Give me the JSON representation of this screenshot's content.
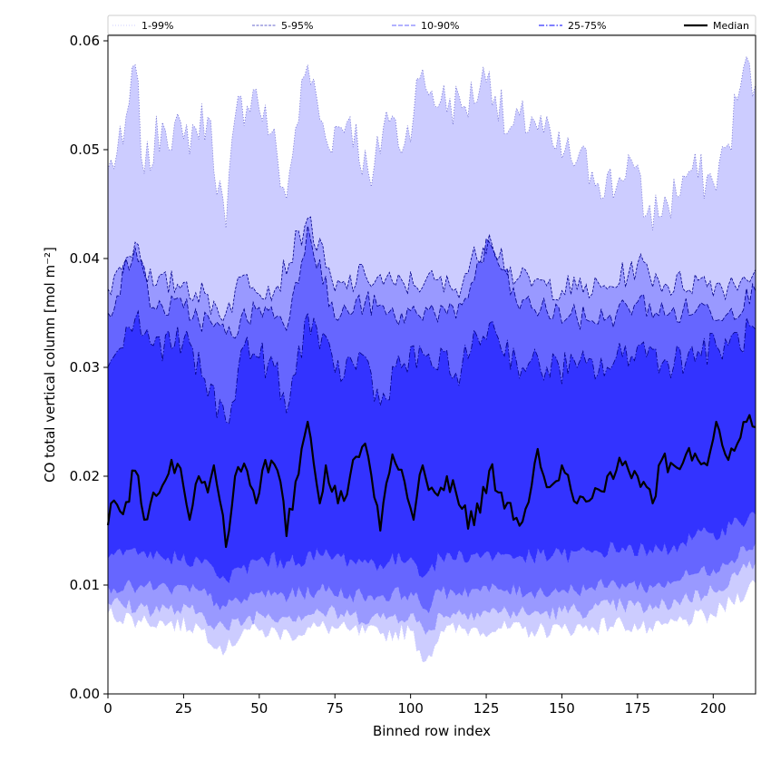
{
  "chart_data": {
    "type": "area",
    "xlabel": "Binned row index",
    "ylabel": "CO total vertical column [mol m⁻²]",
    "xlim": [
      0,
      214
    ],
    "ylim": [
      0,
      0.0605
    ],
    "xticks": [
      0,
      25,
      50,
      75,
      100,
      125,
      150,
      175,
      200
    ],
    "yticks": [
      0.0,
      0.01,
      0.02,
      0.03,
      0.04,
      0.05,
      0.06
    ],
    "ytick_labels": [
      "0.00",
      "0.01",
      "0.02",
      "0.03",
      "0.04",
      "0.05",
      "0.06"
    ],
    "legend_placement": "top, spanning full width",
    "grid": false,
    "n_points": 215,
    "x_step": 1,
    "bands": [
      {
        "name": "1-99%",
        "color": "#ccccff",
        "line_style": "dotted",
        "upper_knots": [
          [
            0,
            0.0482
          ],
          [
            5,
            0.0505
          ],
          [
            9,
            0.0578
          ],
          [
            12,
            0.0478
          ],
          [
            18,
            0.0525
          ],
          [
            25,
            0.051
          ],
          [
            33,
            0.053
          ],
          [
            39,
            0.0428
          ],
          [
            42,
            0.053
          ],
          [
            48,
            0.0555
          ],
          [
            54,
            0.0515
          ],
          [
            59,
            0.0455
          ],
          [
            62,
            0.052
          ],
          [
            66,
            0.0578
          ],
          [
            72,
            0.051
          ],
          [
            80,
            0.053
          ],
          [
            87,
            0.0466
          ],
          [
            92,
            0.0535
          ],
          [
            98,
            0.0505
          ],
          [
            103,
            0.0565
          ],
          [
            110,
            0.0545
          ],
          [
            118,
            0.054
          ],
          [
            126,
            0.0572
          ],
          [
            132,
            0.0515
          ],
          [
            140,
            0.053
          ],
          [
            148,
            0.05
          ],
          [
            155,
            0.049
          ],
          [
            160,
            0.048
          ],
          [
            168,
            0.0465
          ],
          [
            172,
            0.0495
          ],
          [
            178,
            0.044
          ],
          [
            185,
            0.045
          ],
          [
            192,
            0.048
          ],
          [
            200,
            0.047
          ],
          [
            205,
            0.0505
          ],
          [
            210,
            0.0575
          ],
          [
            214,
            0.056
          ]
        ],
        "lower_knots": [
          [
            0,
            0.0074
          ],
          [
            10,
            0.0068
          ],
          [
            20,
            0.0065
          ],
          [
            30,
            0.0062
          ],
          [
            39,
            0.004
          ],
          [
            45,
            0.006
          ],
          [
            50,
            0.0058
          ],
          [
            60,
            0.0055
          ],
          [
            70,
            0.0062
          ],
          [
            80,
            0.0058
          ],
          [
            90,
            0.0055
          ],
          [
            100,
            0.0058
          ],
          [
            105,
            0.003
          ],
          [
            110,
            0.0058
          ],
          [
            120,
            0.006
          ],
          [
            130,
            0.006
          ],
          [
            140,
            0.0058
          ],
          [
            150,
            0.006
          ],
          [
            160,
            0.0062
          ],
          [
            170,
            0.0065
          ],
          [
            180,
            0.0058
          ],
          [
            190,
            0.0068
          ],
          [
            200,
            0.0072
          ],
          [
            214,
            0.0102
          ]
        ]
      },
      {
        "name": "5-95%",
        "color": "#9999ff",
        "line_style": "dashed-fine",
        "upper_knots": [
          [
            0,
            0.0372
          ],
          [
            9,
            0.0415
          ],
          [
            15,
            0.0375
          ],
          [
            25,
            0.0378
          ],
          [
            39,
            0.035
          ],
          [
            45,
            0.0385
          ],
          [
            55,
            0.037
          ],
          [
            66,
            0.0437
          ],
          [
            75,
            0.037
          ],
          [
            85,
            0.0385
          ],
          [
            95,
            0.0375
          ],
          [
            105,
            0.038
          ],
          [
            115,
            0.0372
          ],
          [
            126,
            0.0422
          ],
          [
            135,
            0.038
          ],
          [
            145,
            0.0375
          ],
          [
            155,
            0.0372
          ],
          [
            165,
            0.0372
          ],
          [
            175,
            0.0395
          ],
          [
            185,
            0.0375
          ],
          [
            195,
            0.038
          ],
          [
            205,
            0.0375
          ],
          [
            214,
            0.039
          ]
        ],
        "lower_knots": [
          [
            0,
            0.0084
          ],
          [
            10,
            0.008
          ],
          [
            20,
            0.0078
          ],
          [
            30,
            0.0075
          ],
          [
            39,
            0.006
          ],
          [
            50,
            0.0074
          ],
          [
            60,
            0.0072
          ],
          [
            70,
            0.0076
          ],
          [
            80,
            0.0072
          ],
          [
            90,
            0.007
          ],
          [
            100,
            0.0074
          ],
          [
            105,
            0.0055
          ],
          [
            110,
            0.0074
          ],
          [
            120,
            0.0076
          ],
          [
            130,
            0.0076
          ],
          [
            140,
            0.0074
          ],
          [
            150,
            0.0076
          ],
          [
            160,
            0.0078
          ],
          [
            170,
            0.0082
          ],
          [
            180,
            0.0078
          ],
          [
            190,
            0.0088
          ],
          [
            200,
            0.0095
          ],
          [
            214,
            0.0122
          ]
        ]
      },
      {
        "name": "10-90%",
        "color": "#6666ff",
        "line_style": "dashed",
        "upper_knots": [
          [
            0,
            0.035
          ],
          [
            9,
            0.041
          ],
          [
            15,
            0.0355
          ],
          [
            25,
            0.0355
          ],
          [
            39,
            0.033
          ],
          [
            50,
            0.0355
          ],
          [
            60,
            0.0345
          ],
          [
            66,
            0.043
          ],
          [
            75,
            0.0345
          ],
          [
            85,
            0.036
          ],
          [
            95,
            0.0345
          ],
          [
            105,
            0.0355
          ],
          [
            115,
            0.0345
          ],
          [
            126,
            0.0415
          ],
          [
            135,
            0.036
          ],
          [
            145,
            0.0352
          ],
          [
            155,
            0.0345
          ],
          [
            165,
            0.0345
          ],
          [
            175,
            0.036
          ],
          [
            185,
            0.0348
          ],
          [
            195,
            0.0355
          ],
          [
            205,
            0.035
          ],
          [
            214,
            0.037
          ]
        ],
        "lower_knots": [
          [
            0,
            0.01
          ],
          [
            10,
            0.0098
          ],
          [
            20,
            0.0097
          ],
          [
            30,
            0.0095
          ],
          [
            39,
            0.008
          ],
          [
            50,
            0.0093
          ],
          [
            60,
            0.0091
          ],
          [
            70,
            0.0096
          ],
          [
            80,
            0.0092
          ],
          [
            90,
            0.009
          ],
          [
            100,
            0.0094
          ],
          [
            105,
            0.0078
          ],
          [
            110,
            0.0094
          ],
          [
            120,
            0.0096
          ],
          [
            130,
            0.0096
          ],
          [
            140,
            0.0094
          ],
          [
            150,
            0.0096
          ],
          [
            160,
            0.0098
          ],
          [
            170,
            0.0102
          ],
          [
            180,
            0.0098
          ],
          [
            190,
            0.0108
          ],
          [
            200,
            0.0115
          ],
          [
            214,
            0.014
          ]
        ]
      },
      {
        "name": "25-75%",
        "color": "#3333ff",
        "line_style": "dash-dot",
        "upper_knots": [
          [
            0,
            0.03
          ],
          [
            9,
            0.0345
          ],
          [
            15,
            0.032
          ],
          [
            25,
            0.0325
          ],
          [
            39,
            0.025
          ],
          [
            45,
            0.032
          ],
          [
            55,
            0.03
          ],
          [
            59,
            0.0258
          ],
          [
            66,
            0.035
          ],
          [
            75,
            0.0295
          ],
          [
            85,
            0.031
          ],
          [
            90,
            0.0265
          ],
          [
            95,
            0.03
          ],
          [
            105,
            0.031
          ],
          [
            115,
            0.0295
          ],
          [
            126,
            0.034
          ],
          [
            135,
            0.0305
          ],
          [
            145,
            0.03
          ],
          [
            155,
            0.03
          ],
          [
            165,
            0.03
          ],
          [
            175,
            0.032
          ],
          [
            185,
            0.0305
          ],
          [
            195,
            0.0315
          ],
          [
            205,
            0.032
          ],
          [
            214,
            0.0335
          ]
        ],
        "lower_knots": [
          [
            0,
            0.0125
          ],
          [
            10,
            0.0128
          ],
          [
            20,
            0.0126
          ],
          [
            30,
            0.0124
          ],
          [
            39,
            0.0105
          ],
          [
            50,
            0.0124
          ],
          [
            60,
            0.0122
          ],
          [
            70,
            0.0128
          ],
          [
            80,
            0.0124
          ],
          [
            90,
            0.012
          ],
          [
            100,
            0.0126
          ],
          [
            105,
            0.011
          ],
          [
            110,
            0.0126
          ],
          [
            120,
            0.0128
          ],
          [
            130,
            0.0128
          ],
          [
            140,
            0.0126
          ],
          [
            150,
            0.0128
          ],
          [
            160,
            0.013
          ],
          [
            170,
            0.0135
          ],
          [
            180,
            0.013
          ],
          [
            190,
            0.014
          ],
          [
            200,
            0.0148
          ],
          [
            214,
            0.0165
          ]
        ]
      }
    ],
    "median": {
      "name": "Median",
      "color": "#000000",
      "knots": [
        [
          0,
          0.0155
        ],
        [
          1,
          0.0175
        ],
        [
          5,
          0.0165
        ],
        [
          9,
          0.0205
        ],
        [
          12,
          0.016
        ],
        [
          15,
          0.0185
        ],
        [
          21,
          0.0215
        ],
        [
          25,
          0.019
        ],
        [
          27,
          0.016
        ],
        [
          30,
          0.02
        ],
        [
          33,
          0.0185
        ],
        [
          35,
          0.021
        ],
        [
          39,
          0.0135
        ],
        [
          42,
          0.02
        ],
        [
          46,
          0.0205
        ],
        [
          49,
          0.0175
        ],
        [
          52,
          0.0215
        ],
        [
          57,
          0.0195
        ],
        [
          59,
          0.0145
        ],
        [
          62,
          0.0195
        ],
        [
          66,
          0.025
        ],
        [
          70,
          0.0175
        ],
        [
          72,
          0.021
        ],
        [
          76,
          0.0175
        ],
        [
          80,
          0.02
        ],
        [
          85,
          0.023
        ],
        [
          90,
          0.015
        ],
        [
          94,
          0.022
        ],
        [
          98,
          0.0195
        ],
        [
          101,
          0.016
        ],
        [
          104,
          0.021
        ],
        [
          108,
          0.0185
        ],
        [
          112,
          0.02
        ],
        [
          117,
          0.017
        ],
        [
          121,
          0.0155
        ],
        [
          126,
          0.0205
        ],
        [
          130,
          0.0185
        ],
        [
          134,
          0.016
        ],
        [
          138,
          0.017
        ],
        [
          142,
          0.0225
        ],
        [
          146,
          0.019
        ],
        [
          150,
          0.021
        ],
        [
          155,
          0.0175
        ],
        [
          160,
          0.018
        ],
        [
          165,
          0.02
        ],
        [
          170,
          0.021
        ],
        [
          175,
          0.02
        ],
        [
          180,
          0.0175
        ],
        [
          183,
          0.0215
        ],
        [
          187,
          0.021
        ],
        [
          191,
          0.022
        ],
        [
          195,
          0.0215
        ],
        [
          198,
          0.021
        ],
        [
          201,
          0.025
        ],
        [
          204,
          0.022
        ],
        [
          208,
          0.023
        ],
        [
          211,
          0.025
        ],
        [
          214,
          0.0245
        ]
      ]
    }
  },
  "legend": {
    "items": [
      "1-99%",
      "5-95%",
      "10-90%",
      "25-75%",
      "Median"
    ]
  }
}
